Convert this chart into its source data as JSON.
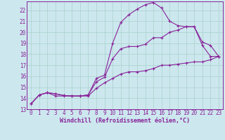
{
  "xlabel": "Windchill (Refroidissement éolien,°C)",
  "bg_color": "#cce8ee",
  "grid_color": "#aacfcc",
  "line_color": "#882299",
  "xlim": [
    -0.5,
    23.5
  ],
  "ylim": [
    13,
    22.8
  ],
  "xticks": [
    0,
    1,
    2,
    3,
    4,
    5,
    6,
    7,
    8,
    9,
    10,
    11,
    12,
    13,
    14,
    15,
    16,
    17,
    18,
    19,
    20,
    21,
    22,
    23
  ],
  "yticks": [
    13,
    14,
    15,
    16,
    17,
    18,
    19,
    20,
    21,
    22
  ],
  "line1_x": [
    0,
    1,
    2,
    3,
    4,
    5,
    6,
    7,
    8,
    9,
    10,
    11,
    12,
    13,
    14,
    15,
    16,
    17,
    18,
    19,
    20,
    21,
    22,
    23
  ],
  "line1_y": [
    13.5,
    14.3,
    14.5,
    14.4,
    14.25,
    14.2,
    14.2,
    14.3,
    15.8,
    16.1,
    19.0,
    20.9,
    21.6,
    22.1,
    22.5,
    22.7,
    22.2,
    21.0,
    20.6,
    20.5,
    20.5,
    18.8,
    17.8,
    17.8
  ],
  "line2_x": [
    0,
    1,
    2,
    3,
    4,
    5,
    6,
    7,
    8,
    9,
    10,
    11,
    12,
    13,
    14,
    15,
    16,
    17,
    18,
    19,
    20,
    21,
    22,
    23
  ],
  "line2_y": [
    13.5,
    14.3,
    14.5,
    14.4,
    14.25,
    14.2,
    14.2,
    14.3,
    15.5,
    15.9,
    17.6,
    18.5,
    18.7,
    18.7,
    18.9,
    19.5,
    19.5,
    20.0,
    20.2,
    20.5,
    20.5,
    19.1,
    18.8,
    17.8
  ],
  "line3_x": [
    0,
    1,
    2,
    3,
    4,
    5,
    6,
    7,
    8,
    9,
    10,
    11,
    12,
    13,
    14,
    15,
    16,
    17,
    18,
    19,
    20,
    21,
    22,
    23
  ],
  "line3_y": [
    13.5,
    14.3,
    14.5,
    14.2,
    14.2,
    14.2,
    14.2,
    14.2,
    14.9,
    15.4,
    15.8,
    16.2,
    16.4,
    16.4,
    16.5,
    16.7,
    17.0,
    17.0,
    17.1,
    17.2,
    17.3,
    17.3,
    17.5,
    17.8
  ],
  "marker": "+",
  "markersize": 3,
  "linewidth": 0.8,
  "xlabel_fontsize": 6,
  "tick_fontsize": 5.5,
  "tick_color": "#882299",
  "spine_color": "#882299"
}
